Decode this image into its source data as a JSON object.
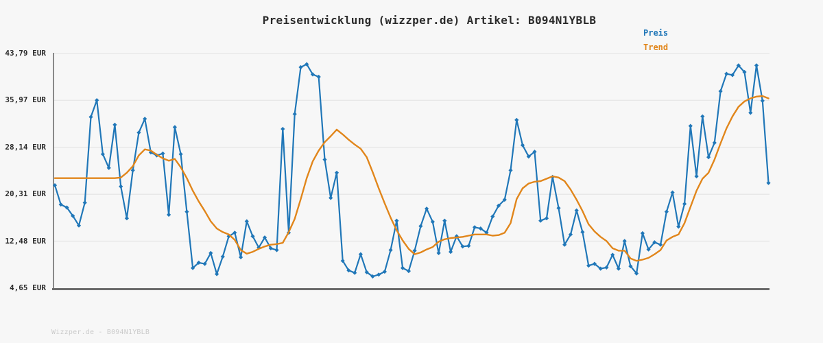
{
  "watermark": "Wizzper.de - B094N1YBLB",
  "colors": {
    "background": "#f7f7f7",
    "price": "#2077b8",
    "trend": "#e1861b",
    "grid": "#e8e8e8",
    "y_axis_spine": "#8a8a8a",
    "x_axis_spine": "#6b6b6b",
    "text": "#2b2b2b",
    "watermark_text": "#cbcbcb"
  },
  "chart_data": {
    "type": "line",
    "title": "Preisentwicklung (wizzper.de) Artikel: B094N1YBLB",
    "currency": "EUR",
    "xlabel": "",
    "ylabel": "",
    "ylim": [
      4.65,
      43.79
    ],
    "yticks": [
      4.65,
      12.48,
      20.31,
      28.14,
      35.97,
      43.79
    ],
    "ytick_labels": [
      "4,65 EUR",
      "12,48 EUR",
      "20,31 EUR",
      "28,14 EUR",
      "35,97 EUR",
      "43,79 EUR"
    ],
    "xtick_labels": [],
    "grid": "horizontal",
    "legend_position": "top-right",
    "n_points": 120,
    "series": [
      {
        "name": "Preis",
        "color": "#2077b8",
        "marker": "diamond",
        "values": [
          21.8,
          18.6,
          18.1,
          16.7,
          15.1,
          18.9,
          33.2,
          36.0,
          27.0,
          24.7,
          31.9,
          21.6,
          16.3,
          24.3,
          30.6,
          32.9,
          27.3,
          26.8,
          27.1,
          16.9,
          31.5,
          27.0,
          17.4,
          8.0,
          8.9,
          8.7,
          10.5,
          7.0,
          9.9,
          13.3,
          13.9,
          9.8,
          15.8,
          13.3,
          11.4,
          13.1,
          11.3,
          11.0,
          31.2,
          13.9,
          33.7,
          41.5,
          42.0,
          40.3,
          39.9,
          26.1,
          19.7,
          23.9,
          9.2,
          7.6,
          7.2,
          10.3,
          7.3,
          6.6,
          6.9,
          7.4,
          11.0,
          15.9,
          8.0,
          7.5,
          10.9,
          15.0,
          17.9,
          15.7,
          10.5,
          15.9,
          10.7,
          13.3,
          11.6,
          11.7,
          14.8,
          14.6,
          13.9,
          16.6,
          18.4,
          19.4,
          24.3,
          32.7,
          28.5,
          26.6,
          27.4,
          15.9,
          16.3,
          23.2,
          18.0,
          11.9,
          13.6,
          17.6,
          14.0,
          8.4,
          8.7,
          7.9,
          8.1,
          10.2,
          7.9,
          12.5,
          8.3,
          7.1,
          13.8,
          11.1,
          12.3,
          11.9,
          17.4,
          20.6,
          14.9,
          18.7,
          31.7,
          23.3,
          33.3,
          26.5,
          28.9,
          37.5,
          40.4,
          40.2,
          41.8,
          40.7,
          33.9,
          41.8,
          35.9,
          22.2
        ]
      },
      {
        "name": "Trend",
        "color": "#e1861b",
        "marker": "none",
        "values": [
          23.0,
          23.0,
          23.0,
          23.0,
          23.0,
          23.0,
          23.0,
          23.0,
          23.0,
          23.0,
          23.0,
          23.1,
          23.9,
          25.0,
          26.8,
          27.8,
          27.6,
          26.9,
          26.3,
          25.9,
          26.2,
          24.8,
          23.0,
          20.9,
          19.1,
          17.5,
          15.8,
          14.6,
          14.0,
          13.6,
          12.7,
          11.0,
          10.4,
          10.7,
          11.2,
          11.6,
          11.9,
          12.0,
          12.2,
          14.0,
          16.2,
          19.5,
          23.0,
          25.8,
          27.6,
          29.0,
          30.0,
          31.1,
          30.3,
          29.4,
          28.6,
          27.9,
          26.5,
          24.0,
          21.3,
          18.8,
          16.4,
          14.3,
          12.6,
          11.2,
          10.3,
          10.6,
          11.1,
          11.5,
          12.4,
          12.8,
          13.0,
          13.1,
          13.2,
          13.4,
          13.6,
          13.6,
          13.6,
          13.4,
          13.5,
          13.9,
          15.5,
          19.5,
          21.3,
          22.1,
          22.4,
          22.5,
          22.9,
          23.3,
          23.1,
          22.5,
          21.1,
          19.4,
          17.5,
          15.3,
          14.1,
          13.2,
          12.5,
          11.3,
          10.9,
          10.9,
          9.6,
          9.2,
          9.4,
          9.7,
          10.3,
          11.0,
          12.6,
          13.2,
          13.6,
          15.5,
          18.2,
          20.9,
          22.9,
          23.9,
          26.1,
          28.8,
          31.3,
          33.3,
          34.9,
          35.8,
          36.3,
          36.6,
          36.7,
          36.3
        ]
      }
    ]
  }
}
